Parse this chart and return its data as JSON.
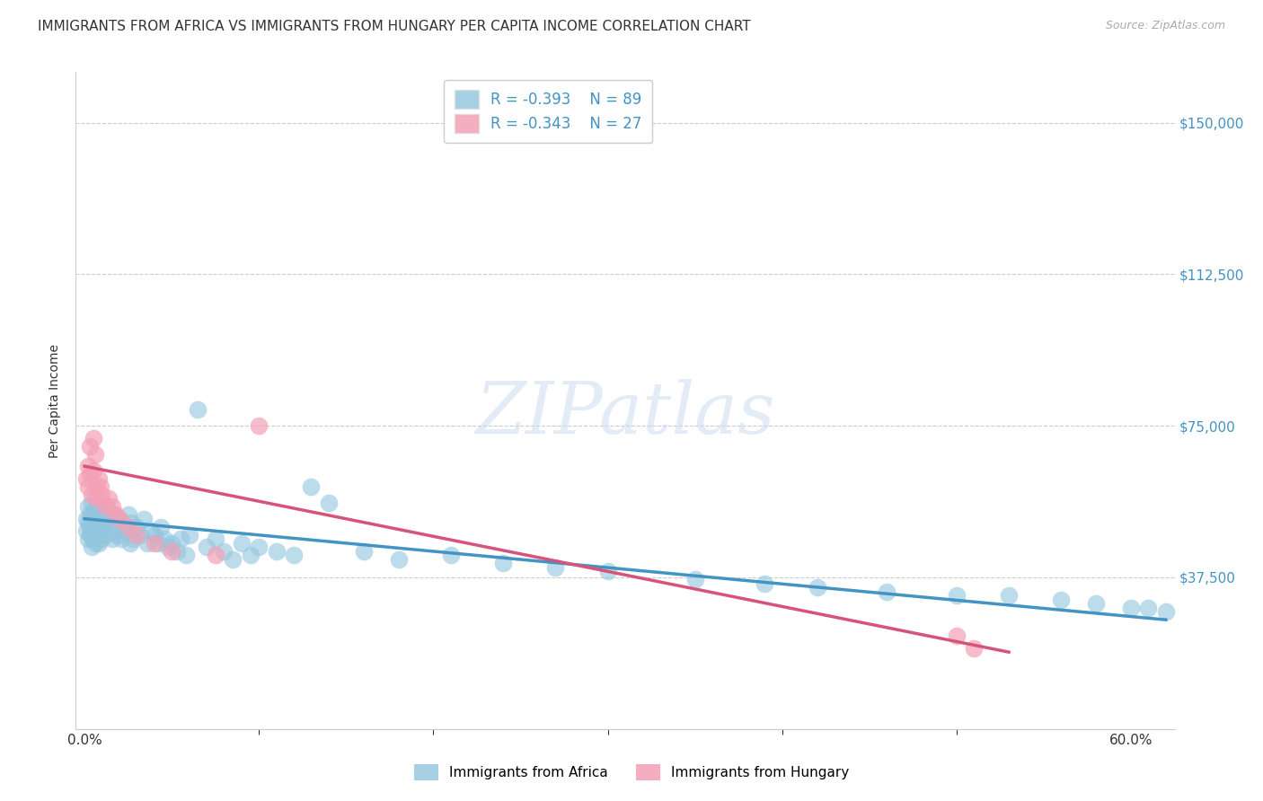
{
  "title": "IMMIGRANTS FROM AFRICA VS IMMIGRANTS FROM HUNGARY PER CAPITA INCOME CORRELATION CHART",
  "source": "Source: ZipAtlas.com",
  "ylabel": "Per Capita Income",
  "ylim": [
    0,
    162500
  ],
  "xlim": [
    -0.005,
    0.625
  ],
  "yticks": [
    0,
    37500,
    75000,
    112500,
    150000
  ],
  "ytick_labels": [
    "",
    "$37,500",
    "$75,000",
    "$112,500",
    "$150,000"
  ],
  "xticks": [
    0.0,
    0.6
  ],
  "xtick_labels": [
    "0.0%",
    "60.0%"
  ],
  "xticks_minor": [
    0.1,
    0.2,
    0.3,
    0.4,
    0.5
  ],
  "legend_r_africa": "R = -0.393",
  "legend_n_africa": "N = 89",
  "legend_r_hungary": "R = -0.343",
  "legend_n_hungary": "N = 27",
  "africa_color": "#92c5de",
  "hungary_color": "#f4a0b5",
  "africa_line_color": "#4393c3",
  "hungary_line_color": "#d6537a",
  "text_color": "#333333",
  "grid_color": "#cccccc",
  "watermark": "ZIPatlas",
  "africa_x": [
    0.001,
    0.001,
    0.002,
    0.002,
    0.002,
    0.003,
    0.003,
    0.003,
    0.004,
    0.004,
    0.004,
    0.005,
    0.005,
    0.005,
    0.006,
    0.006,
    0.006,
    0.007,
    0.007,
    0.007,
    0.008,
    0.008,
    0.008,
    0.009,
    0.009,
    0.01,
    0.01,
    0.011,
    0.011,
    0.012,
    0.013,
    0.014,
    0.015,
    0.016,
    0.017,
    0.018,
    0.019,
    0.02,
    0.021,
    0.022,
    0.024,
    0.025,
    0.026,
    0.027,
    0.028,
    0.03,
    0.032,
    0.034,
    0.036,
    0.038,
    0.04,
    0.042,
    0.044,
    0.046,
    0.048,
    0.05,
    0.053,
    0.055,
    0.058,
    0.06,
    0.065,
    0.07,
    0.075,
    0.08,
    0.085,
    0.09,
    0.095,
    0.1,
    0.11,
    0.12,
    0.13,
    0.14,
    0.16,
    0.18,
    0.21,
    0.24,
    0.27,
    0.3,
    0.35,
    0.39,
    0.42,
    0.46,
    0.5,
    0.53,
    0.56,
    0.58,
    0.6,
    0.61,
    0.62
  ],
  "africa_y": [
    52000,
    49000,
    55000,
    47000,
    51000,
    53000,
    48000,
    50000,
    56000,
    45000,
    49000,
    54000,
    47000,
    52000,
    50000,
    46000,
    53000,
    55000,
    48000,
    51000,
    49000,
    53000,
    46000,
    54000,
    48000,
    51000,
    47000,
    52000,
    50000,
    48000,
    55000,
    50000,
    52000,
    47000,
    53000,
    49000,
    48000,
    52000,
    47000,
    50000,
    49000,
    53000,
    46000,
    51000,
    47000,
    50000,
    48000,
    52000,
    46000,
    49000,
    48000,
    46000,
    50000,
    47000,
    45000,
    46000,
    44000,
    47000,
    43000,
    48000,
    79000,
    45000,
    47000,
    44000,
    42000,
    46000,
    43000,
    45000,
    44000,
    43000,
    60000,
    56000,
    44000,
    42000,
    43000,
    41000,
    40000,
    39000,
    37000,
    36000,
    35000,
    34000,
    33000,
    33000,
    32000,
    31000,
    30000,
    30000,
    29000
  ],
  "hungary_x": [
    0.001,
    0.002,
    0.002,
    0.003,
    0.003,
    0.004,
    0.005,
    0.005,
    0.006,
    0.007,
    0.007,
    0.008,
    0.009,
    0.01,
    0.012,
    0.014,
    0.016,
    0.018,
    0.02,
    0.025,
    0.03,
    0.04,
    0.05,
    0.075,
    0.1,
    0.5,
    0.51
  ],
  "hungary_y": [
    62000,
    65000,
    60000,
    70000,
    63000,
    58000,
    72000,
    64000,
    68000,
    60000,
    57000,
    62000,
    60000,
    58000,
    55000,
    57000,
    55000,
    53000,
    52000,
    50000,
    48000,
    46000,
    44000,
    43000,
    75000,
    23000,
    20000
  ],
  "africa_trend_x": [
    0.0,
    0.62
  ],
  "africa_trend_y": [
    52000,
    27000
  ],
  "hungary_trend_x": [
    0.0,
    0.53
  ],
  "hungary_trend_y": [
    65000,
    19000
  ]
}
